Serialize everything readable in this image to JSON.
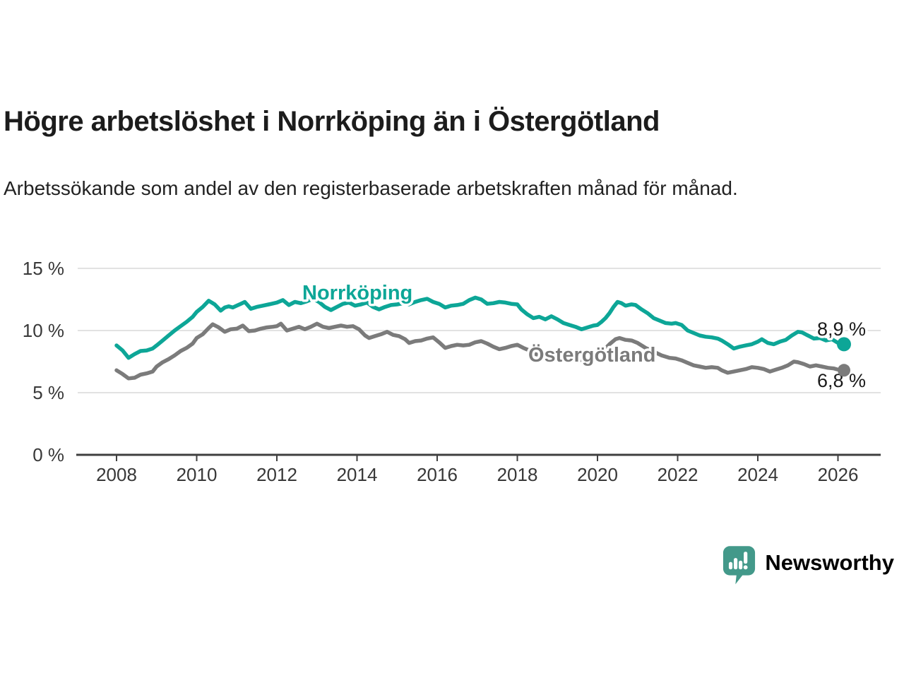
{
  "header": {
    "title": "Högre arbetslöshet i Norrköping än i Östergötland",
    "subtitle": "Arbetssökande som andel av den registerbaserade arbetskraften månad för månad."
  },
  "chart_data": {
    "type": "line",
    "title": "Högre arbetslöshet i Norrköping än i Östergötland",
    "ylabel": "",
    "xlabel": "",
    "grid": "horizontal",
    "y_axis": {
      "unit": "%",
      "range": [
        0,
        15
      ],
      "ticks": [
        {
          "label": "0 %",
          "value": 0
        },
        {
          "label": "5 %",
          "value": 5
        },
        {
          "label": "10 %",
          "value": 10
        },
        {
          "label": "15 %",
          "value": 15
        }
      ]
    },
    "x_axis": {
      "range": [
        2007.0,
        2027.0
      ],
      "ticks": [
        {
          "label": "2008",
          "value": 2008
        },
        {
          "label": "2010",
          "value": 2010
        },
        {
          "label": "2012",
          "value": 2012
        },
        {
          "label": "2014",
          "value": 2014
        },
        {
          "label": "2016",
          "value": 2016
        },
        {
          "label": "2018",
          "value": 2018
        },
        {
          "label": "2020",
          "value": 2020
        },
        {
          "label": "2022",
          "value": 2022
        },
        {
          "label": "2024",
          "value": 2024
        },
        {
          "label": "2026",
          "value": 2026
        }
      ]
    },
    "series": [
      {
        "name": "Norrköping",
        "color": "#0da697",
        "end_label": "8,9 %",
        "end_value": 8.9,
        "points": [
          [
            2008.0,
            8.8
          ],
          [
            2008.15,
            8.4
          ],
          [
            2008.3,
            7.8
          ],
          [
            2008.45,
            8.1
          ],
          [
            2008.6,
            8.35
          ],
          [
            2008.75,
            8.4
          ],
          [
            2008.9,
            8.55
          ],
          [
            2009.0,
            8.8
          ],
          [
            2009.15,
            9.2
          ],
          [
            2009.3,
            9.6
          ],
          [
            2009.45,
            10.0
          ],
          [
            2009.6,
            10.35
          ],
          [
            2009.75,
            10.7
          ],
          [
            2009.9,
            11.1
          ],
          [
            2010.0,
            11.5
          ],
          [
            2010.15,
            11.9
          ],
          [
            2010.3,
            12.4
          ],
          [
            2010.45,
            12.1
          ],
          [
            2010.6,
            11.6
          ],
          [
            2010.7,
            11.85
          ],
          [
            2010.8,
            11.95
          ],
          [
            2010.9,
            11.85
          ],
          [
            2011.0,
            12.0
          ],
          [
            2011.1,
            12.15
          ],
          [
            2011.2,
            12.3
          ],
          [
            2011.35,
            11.75
          ],
          [
            2011.5,
            11.9
          ],
          [
            2011.65,
            12.0
          ],
          [
            2011.8,
            12.1
          ],
          [
            2012.0,
            12.25
          ],
          [
            2012.15,
            12.45
          ],
          [
            2012.3,
            12.05
          ],
          [
            2012.45,
            12.3
          ],
          [
            2012.6,
            12.2
          ],
          [
            2012.75,
            12.35
          ],
          [
            2012.9,
            12.55
          ],
          [
            2013.05,
            12.3
          ],
          [
            2013.2,
            11.9
          ],
          [
            2013.35,
            11.65
          ],
          [
            2013.5,
            11.9
          ],
          [
            2013.65,
            12.15
          ],
          [
            2013.8,
            12.25
          ],
          [
            2013.95,
            12.0
          ],
          [
            2014.1,
            12.1
          ],
          [
            2014.25,
            12.25
          ],
          [
            2014.4,
            11.9
          ],
          [
            2014.55,
            11.7
          ],
          [
            2014.7,
            11.9
          ],
          [
            2014.85,
            12.05
          ],
          [
            2015.0,
            12.1
          ],
          [
            2015.15,
            12.2
          ],
          [
            2015.3,
            12.1
          ],
          [
            2015.45,
            12.3
          ],
          [
            2015.6,
            12.45
          ],
          [
            2015.75,
            12.55
          ],
          [
            2015.9,
            12.3
          ],
          [
            2016.05,
            12.15
          ],
          [
            2016.2,
            11.85
          ],
          [
            2016.35,
            12.0
          ],
          [
            2016.5,
            12.05
          ],
          [
            2016.65,
            12.15
          ],
          [
            2016.8,
            12.45
          ],
          [
            2016.95,
            12.65
          ],
          [
            2017.1,
            12.5
          ],
          [
            2017.25,
            12.15
          ],
          [
            2017.4,
            12.2
          ],
          [
            2017.55,
            12.3
          ],
          [
            2017.7,
            12.25
          ],
          [
            2017.85,
            12.15
          ],
          [
            2018.0,
            12.1
          ],
          [
            2018.1,
            11.7
          ],
          [
            2018.25,
            11.3
          ],
          [
            2018.4,
            11.0
          ],
          [
            2018.55,
            11.1
          ],
          [
            2018.7,
            10.9
          ],
          [
            2018.85,
            11.15
          ],
          [
            2019.0,
            10.9
          ],
          [
            2019.15,
            10.6
          ],
          [
            2019.3,
            10.45
          ],
          [
            2019.45,
            10.3
          ],
          [
            2019.6,
            10.1
          ],
          [
            2019.75,
            10.25
          ],
          [
            2019.9,
            10.4
          ],
          [
            2020.0,
            10.45
          ],
          [
            2020.1,
            10.7
          ],
          [
            2020.2,
            11.0
          ],
          [
            2020.3,
            11.4
          ],
          [
            2020.4,
            11.9
          ],
          [
            2020.5,
            12.3
          ],
          [
            2020.6,
            12.2
          ],
          [
            2020.7,
            12.0
          ],
          [
            2020.85,
            12.1
          ],
          [
            2020.95,
            12.05
          ],
          [
            2021.1,
            11.7
          ],
          [
            2021.25,
            11.4
          ],
          [
            2021.4,
            11.0
          ],
          [
            2021.55,
            10.8
          ],
          [
            2021.7,
            10.6
          ],
          [
            2021.85,
            10.55
          ],
          [
            2021.95,
            10.6
          ],
          [
            2022.1,
            10.45
          ],
          [
            2022.25,
            10.0
          ],
          [
            2022.4,
            9.8
          ],
          [
            2022.55,
            9.6
          ],
          [
            2022.7,
            9.5
          ],
          [
            2022.85,
            9.45
          ],
          [
            2023.0,
            9.35
          ],
          [
            2023.1,
            9.2
          ],
          [
            2023.25,
            8.9
          ],
          [
            2023.4,
            8.55
          ],
          [
            2023.55,
            8.7
          ],
          [
            2023.7,
            8.8
          ],
          [
            2023.85,
            8.9
          ],
          [
            2024.0,
            9.1
          ],
          [
            2024.1,
            9.3
          ],
          [
            2024.25,
            9.0
          ],
          [
            2024.4,
            8.9
          ],
          [
            2024.55,
            9.1
          ],
          [
            2024.7,
            9.25
          ],
          [
            2024.85,
            9.6
          ],
          [
            2025.0,
            9.9
          ],
          [
            2025.1,
            9.85
          ],
          [
            2025.25,
            9.6
          ],
          [
            2025.4,
            9.35
          ],
          [
            2025.55,
            9.4
          ],
          [
            2025.7,
            9.2
          ],
          [
            2025.85,
            9.3
          ],
          [
            2026.0,
            9.0
          ],
          [
            2026.15,
            8.9
          ]
        ]
      },
      {
        "name": "Östergötland",
        "color": "#7b7b7b",
        "end_label": "6,8 %",
        "end_value": 6.8,
        "points": [
          [
            2008.0,
            6.8
          ],
          [
            2008.15,
            6.5
          ],
          [
            2008.3,
            6.15
          ],
          [
            2008.45,
            6.2
          ],
          [
            2008.6,
            6.45
          ],
          [
            2008.75,
            6.55
          ],
          [
            2008.9,
            6.7
          ],
          [
            2009.0,
            7.1
          ],
          [
            2009.15,
            7.45
          ],
          [
            2009.3,
            7.7
          ],
          [
            2009.45,
            8.0
          ],
          [
            2009.6,
            8.35
          ],
          [
            2009.75,
            8.6
          ],
          [
            2009.9,
            8.95
          ],
          [
            2010.0,
            9.4
          ],
          [
            2010.15,
            9.7
          ],
          [
            2010.3,
            10.2
          ],
          [
            2010.4,
            10.5
          ],
          [
            2010.55,
            10.25
          ],
          [
            2010.7,
            9.9
          ],
          [
            2010.85,
            10.1
          ],
          [
            2011.0,
            10.15
          ],
          [
            2011.15,
            10.4
          ],
          [
            2011.3,
            9.95
          ],
          [
            2011.45,
            10.0
          ],
          [
            2011.6,
            10.15
          ],
          [
            2011.75,
            10.25
          ],
          [
            2011.9,
            10.3
          ],
          [
            2012.0,
            10.35
          ],
          [
            2012.1,
            10.55
          ],
          [
            2012.25,
            10.0
          ],
          [
            2012.4,
            10.15
          ],
          [
            2012.55,
            10.3
          ],
          [
            2012.7,
            10.1
          ],
          [
            2012.85,
            10.3
          ],
          [
            2013.0,
            10.55
          ],
          [
            2013.15,
            10.3
          ],
          [
            2013.3,
            10.2
          ],
          [
            2013.45,
            10.3
          ],
          [
            2013.6,
            10.4
          ],
          [
            2013.75,
            10.3
          ],
          [
            2013.9,
            10.35
          ],
          [
            2014.05,
            10.1
          ],
          [
            2014.2,
            9.6
          ],
          [
            2014.3,
            9.4
          ],
          [
            2014.45,
            9.55
          ],
          [
            2014.6,
            9.7
          ],
          [
            2014.75,
            9.9
          ],
          [
            2014.9,
            9.65
          ],
          [
            2015.05,
            9.55
          ],
          [
            2015.2,
            9.3
          ],
          [
            2015.3,
            9.0
          ],
          [
            2015.45,
            9.15
          ],
          [
            2015.6,
            9.2
          ],
          [
            2015.75,
            9.35
          ],
          [
            2015.9,
            9.45
          ],
          [
            2016.05,
            9.05
          ],
          [
            2016.2,
            8.6
          ],
          [
            2016.35,
            8.75
          ],
          [
            2016.5,
            8.85
          ],
          [
            2016.65,
            8.8
          ],
          [
            2016.8,
            8.85
          ],
          [
            2016.95,
            9.05
          ],
          [
            2017.1,
            9.15
          ],
          [
            2017.25,
            8.95
          ],
          [
            2017.4,
            8.7
          ],
          [
            2017.55,
            8.5
          ],
          [
            2017.7,
            8.6
          ],
          [
            2017.85,
            8.75
          ],
          [
            2018.0,
            8.85
          ],
          [
            2018.15,
            8.6
          ],
          [
            2018.3,
            8.4
          ],
          [
            2018.45,
            8.1
          ],
          [
            2018.6,
            8.0
          ],
          [
            2018.8,
            8.1
          ],
          [
            2019.0,
            7.95
          ],
          [
            2019.2,
            7.8
          ],
          [
            2019.4,
            7.7
          ],
          [
            2019.6,
            7.6
          ],
          [
            2019.8,
            7.75
          ],
          [
            2020.0,
            8.0
          ],
          [
            2020.15,
            8.4
          ],
          [
            2020.3,
            8.9
          ],
          [
            2020.45,
            9.3
          ],
          [
            2020.55,
            9.4
          ],
          [
            2020.7,
            9.25
          ],
          [
            2020.85,
            9.2
          ],
          [
            2021.0,
            9.0
          ],
          [
            2021.2,
            8.6
          ],
          [
            2021.4,
            8.3
          ],
          [
            2021.6,
            8.0
          ],
          [
            2021.8,
            7.8
          ],
          [
            2021.95,
            7.75
          ],
          [
            2022.1,
            7.6
          ],
          [
            2022.25,
            7.4
          ],
          [
            2022.4,
            7.2
          ],
          [
            2022.55,
            7.1
          ],
          [
            2022.7,
            7.0
          ],
          [
            2022.85,
            7.05
          ],
          [
            2023.0,
            7.0
          ],
          [
            2023.1,
            6.8
          ],
          [
            2023.25,
            6.6
          ],
          [
            2023.4,
            6.7
          ],
          [
            2023.55,
            6.8
          ],
          [
            2023.7,
            6.9
          ],
          [
            2023.85,
            7.05
          ],
          [
            2024.0,
            7.0
          ],
          [
            2024.15,
            6.9
          ],
          [
            2024.3,
            6.7
          ],
          [
            2024.45,
            6.85
          ],
          [
            2024.6,
            7.0
          ],
          [
            2024.75,
            7.2
          ],
          [
            2024.9,
            7.5
          ],
          [
            2025.0,
            7.45
          ],
          [
            2025.15,
            7.3
          ],
          [
            2025.3,
            7.1
          ],
          [
            2025.45,
            7.2
          ],
          [
            2025.6,
            7.1
          ],
          [
            2025.75,
            7.0
          ],
          [
            2025.9,
            6.95
          ],
          [
            2026.0,
            6.85
          ],
          [
            2026.15,
            6.8
          ]
        ]
      }
    ]
  },
  "branding": {
    "logo_text": "Newsworthy",
    "logo_color": "#43998a"
  }
}
